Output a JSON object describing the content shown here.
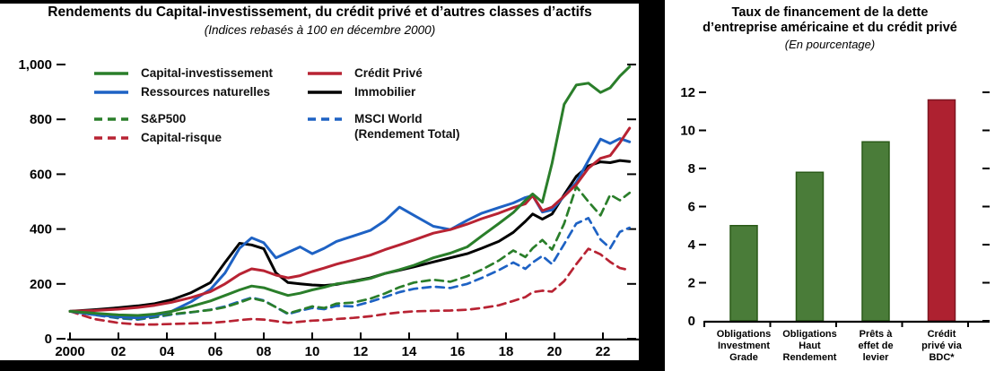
{
  "left_chart": {
    "title": "Rendements du Capital-investissement, du crédit privé et d’autres classes d’actifs",
    "subtitle": "(Indices rebasés à 100 en décembre 2000)",
    "legend": {
      "columns": [
        [
          {
            "label": "Capital-investissement",
            "color": "#2a7e2a",
            "dash": false,
            "gap_before": false
          },
          {
            "label": "Ressources naturelles",
            "color": "#1e62c4",
            "dash": false,
            "gap_before": false
          },
          {
            "label": "S&P500",
            "color": "#2a7e2a",
            "dash": true,
            "gap_before": true
          },
          {
            "label": "Capital-risque",
            "color": "#b82333",
            "dash": true,
            "gap_before": false
          }
        ],
        [
          {
            "label": "Crédit Privé",
            "color": "#b82333",
            "dash": false,
            "gap_before": false
          },
          {
            "label": "Immobilier",
            "color": "#000000",
            "dash": false,
            "gap_before": false
          },
          {
            "label": "MSCI World",
            "label2": "(Rendement Total)",
            "color": "#1e62c4",
            "dash": true,
            "gap_before": true
          }
        ]
      ]
    }
  },
  "right_chart": {
    "title_line1": "Taux de financement de la dette",
    "title_line2": "d’entreprise américaine et du crédit privé",
    "subtitle": "(En pourcentage)"
  },
  "chart_data": [
    {
      "id": "rendements-indices",
      "type": "line",
      "title": "Rendements du Capital-investissement, du crédit privé et d’autres classes d’actifs",
      "subtitle": "(Indices rebasés à 100 en décembre 2000)",
      "xlabel": "",
      "ylabel": "",
      "grid": false,
      "legend_position": "inside-top-left",
      "xlim": [
        2000,
        2023.5
      ],
      "ylim": [
        0,
        1050
      ],
      "x_ticks": [
        {
          "label": "2000",
          "year": 2000
        },
        {
          "label": "02",
          "year": 2002
        },
        {
          "label": "04",
          "year": 2004
        },
        {
          "label": "06",
          "year": 2006
        },
        {
          "label": "08",
          "year": 2008
        },
        {
          "label": "10",
          "year": 2010
        },
        {
          "label": "12",
          "year": 2012
        },
        {
          "label": "14",
          "year": 2014
        },
        {
          "label": "16",
          "year": 2016
        },
        {
          "label": "18",
          "year": 2018
        },
        {
          "label": "20",
          "year": 2020
        },
        {
          "label": "22",
          "year": 2022
        }
      ],
      "y_ticks": [
        {
          "label": "0",
          "value": 0
        },
        {
          "label": "200",
          "value": 200
        },
        {
          "label": "400",
          "value": 400
        },
        {
          "label": "600",
          "value": 600
        },
        {
          "label": "800",
          "value": 800
        },
        {
          "label": "1,000",
          "value": 1000
        }
      ],
      "x": [
        2000,
        2001,
        2002,
        2002.8,
        2003.5,
        2004.2,
        2005,
        2005.8,
        2006.4,
        2007,
        2007.5,
        2008,
        2008.5,
        2009,
        2009.5,
        2010,
        2010.5,
        2011,
        2011.7,
        2012.4,
        2013,
        2013.6,
        2014.2,
        2015,
        2015.7,
        2016.4,
        2017,
        2017.7,
        2018.3,
        2018.8,
        2019.1,
        2019.5,
        2019.9,
        2020.4,
        2020.9,
        2021.4,
        2021.9,
        2022.3,
        2022.7,
        2023.1
      ],
      "series": [
        {
          "name": "Capital-investissement",
          "color": "#2a7e2a",
          "dash": false,
          "values": [
            100,
            93,
            87,
            85,
            90,
            100,
            118,
            138,
            158,
            178,
            192,
            186,
            172,
            158,
            166,
            178,
            188,
            200,
            208,
            220,
            238,
            252,
            268,
            295,
            312,
            335,
            375,
            420,
            460,
            505,
            528,
            498,
            640,
            855,
            925,
            932,
            898,
            915,
            958,
            992
          ]
        },
        {
          "name": "Ressources naturelles",
          "color": "#1e62c4",
          "dash": false,
          "values": [
            100,
            88,
            80,
            76,
            84,
            100,
            135,
            180,
            240,
            330,
            368,
            350,
            295,
            315,
            335,
            310,
            330,
            355,
            375,
            395,
            430,
            480,
            450,
            410,
            398,
            432,
            458,
            478,
            495,
            515,
            522,
            462,
            470,
            520,
            570,
            650,
            728,
            712,
            730,
            718
          ]
        },
        {
          "name": "S&P500",
          "color": "#2a7e2a",
          "dash": true,
          "values": [
            100,
            89,
            77,
            72,
            80,
            90,
            97,
            105,
            115,
            132,
            148,
            138,
            115,
            92,
            105,
            118,
            112,
            128,
            132,
            146,
            165,
            188,
            205,
            215,
            208,
            228,
            252,
            285,
            322,
            298,
            330,
            360,
            325,
            420,
            555,
            500,
            450,
            525,
            505,
            532
          ]
        },
        {
          "name": "Capital-risque",
          "color": "#b82333",
          "dash": true,
          "values": [
            100,
            72,
            58,
            52,
            52,
            54,
            56,
            58,
            62,
            68,
            72,
            70,
            64,
            58,
            62,
            66,
            68,
            72,
            76,
            82,
            90,
            96,
            100,
            102,
            103,
            106,
            112,
            122,
            138,
            152,
            170,
            175,
            172,
            210,
            272,
            328,
            308,
            280,
            258,
            250
          ]
        },
        {
          "name": "Crédit Privé",
          "color": "#b82333",
          "dash": false,
          "values": [
            100,
            103,
            108,
            114,
            122,
            133,
            150,
            172,
            200,
            235,
            255,
            248,
            232,
            222,
            230,
            245,
            258,
            272,
            288,
            305,
            325,
            342,
            360,
            385,
            398,
            418,
            438,
            458,
            478,
            492,
            522,
            467,
            480,
            520,
            562,
            622,
            658,
            668,
            715,
            768
          ]
        },
        {
          "name": "Immobilier",
          "color": "#000000",
          "dash": false,
          "values": [
            100,
            106,
            113,
            120,
            128,
            142,
            168,
            205,
            278,
            348,
            342,
            328,
            240,
            205,
            200,
            196,
            194,
            198,
            210,
            222,
            238,
            250,
            262,
            280,
            295,
            310,
            330,
            355,
            388,
            428,
            455,
            436,
            455,
            525,
            592,
            630,
            645,
            642,
            650,
            646
          ]
        },
        {
          "name": "MSCI World (Rendement Total)",
          "color": "#1e62c4",
          "dash": true,
          "values": [
            100,
            87,
            75,
            70,
            78,
            88,
            96,
            106,
            118,
            136,
            150,
            140,
            115,
            90,
            102,
            112,
            108,
            120,
            118,
            135,
            152,
            170,
            182,
            190,
            185,
            200,
            222,
            250,
            278,
            255,
            278,
            302,
            272,
            345,
            420,
            440,
            362,
            330,
            390,
            405
          ]
        }
      ]
    },
    {
      "id": "taux-financement",
      "type": "bar",
      "title": "Taux de financement de la dette d’entreprise américaine et du crédit privé",
      "subtitle": "(En pourcentage)",
      "xlabel": "",
      "ylabel": "",
      "grid": false,
      "ylim": [
        0,
        12.8
      ],
      "y_tick_values": [
        0,
        2,
        4,
        6,
        8,
        10,
        12
      ],
      "categories": [
        "Obligations Investment Grade",
        "Obligations Haut Rendement",
        "Prêts à effet de levier",
        "Crédit privé via BDC*"
      ],
      "category_lines": [
        [
          "Obligations",
          "Investment",
          "Grade"
        ],
        [
          "Obligations",
          "Haut",
          "Rendement"
        ],
        [
          "Prêts à",
          "effet de",
          "levier"
        ],
        [
          "Crédit",
          "privé via",
          "BDC*"
        ]
      ],
      "values": [
        5.0,
        7.8,
        9.4,
        11.6
      ],
      "bar_colors": [
        "#4a7c39",
        "#4a7c39",
        "#4a7c39",
        "#ae2130"
      ],
      "bar_edge_colors": [
        "#2a5a18",
        "#2a5a18",
        "#2a5a18",
        "#7d1722"
      ]
    }
  ]
}
